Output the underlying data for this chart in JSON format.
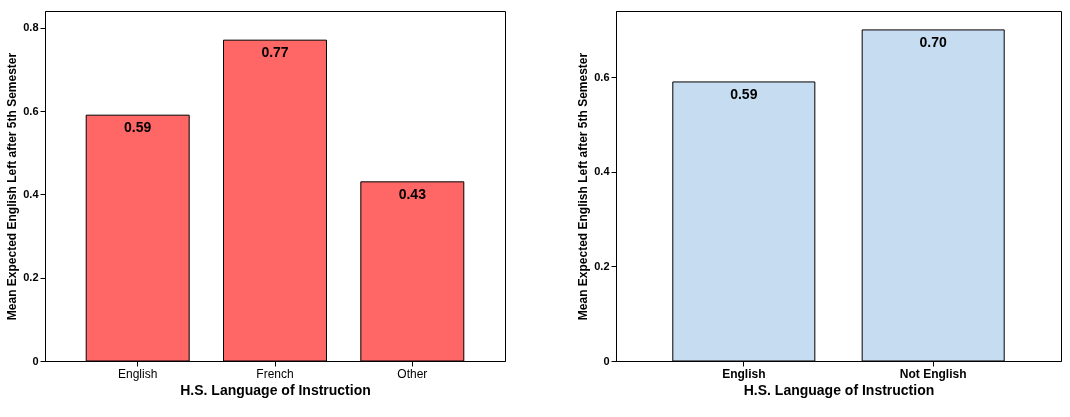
{
  "chart_data": [
    {
      "type": "bar",
      "xlabel": "H.S. Language of Instruction",
      "ylabel": "Mean Expected English Left after 5th Semester",
      "categories": [
        "English",
        "French",
        "Other"
      ],
      "values": [
        0.59,
        0.77,
        0.43
      ],
      "value_labels": [
        "0.59",
        "0.77",
        "0.43"
      ],
      "color": "#ff6666",
      "ylim": [
        0,
        0.84
      ],
      "yticks": [
        0,
        0.2,
        0.4,
        0.6,
        0.8
      ],
      "grid": false
    },
    {
      "type": "bar",
      "xlabel": "H.S. Language of Instruction",
      "ylabel": "Mean Expected English Left after 5th Semester",
      "categories": [
        "English",
        "Not English"
      ],
      "values": [
        0.59,
        0.7
      ],
      "value_labels": [
        "0.59",
        "0.70"
      ],
      "color": "#c6dcf0",
      "ylim": [
        0,
        0.74
      ],
      "yticks": [
        0,
        0.2,
        0.4,
        0.6
      ],
      "grid": false
    }
  ]
}
